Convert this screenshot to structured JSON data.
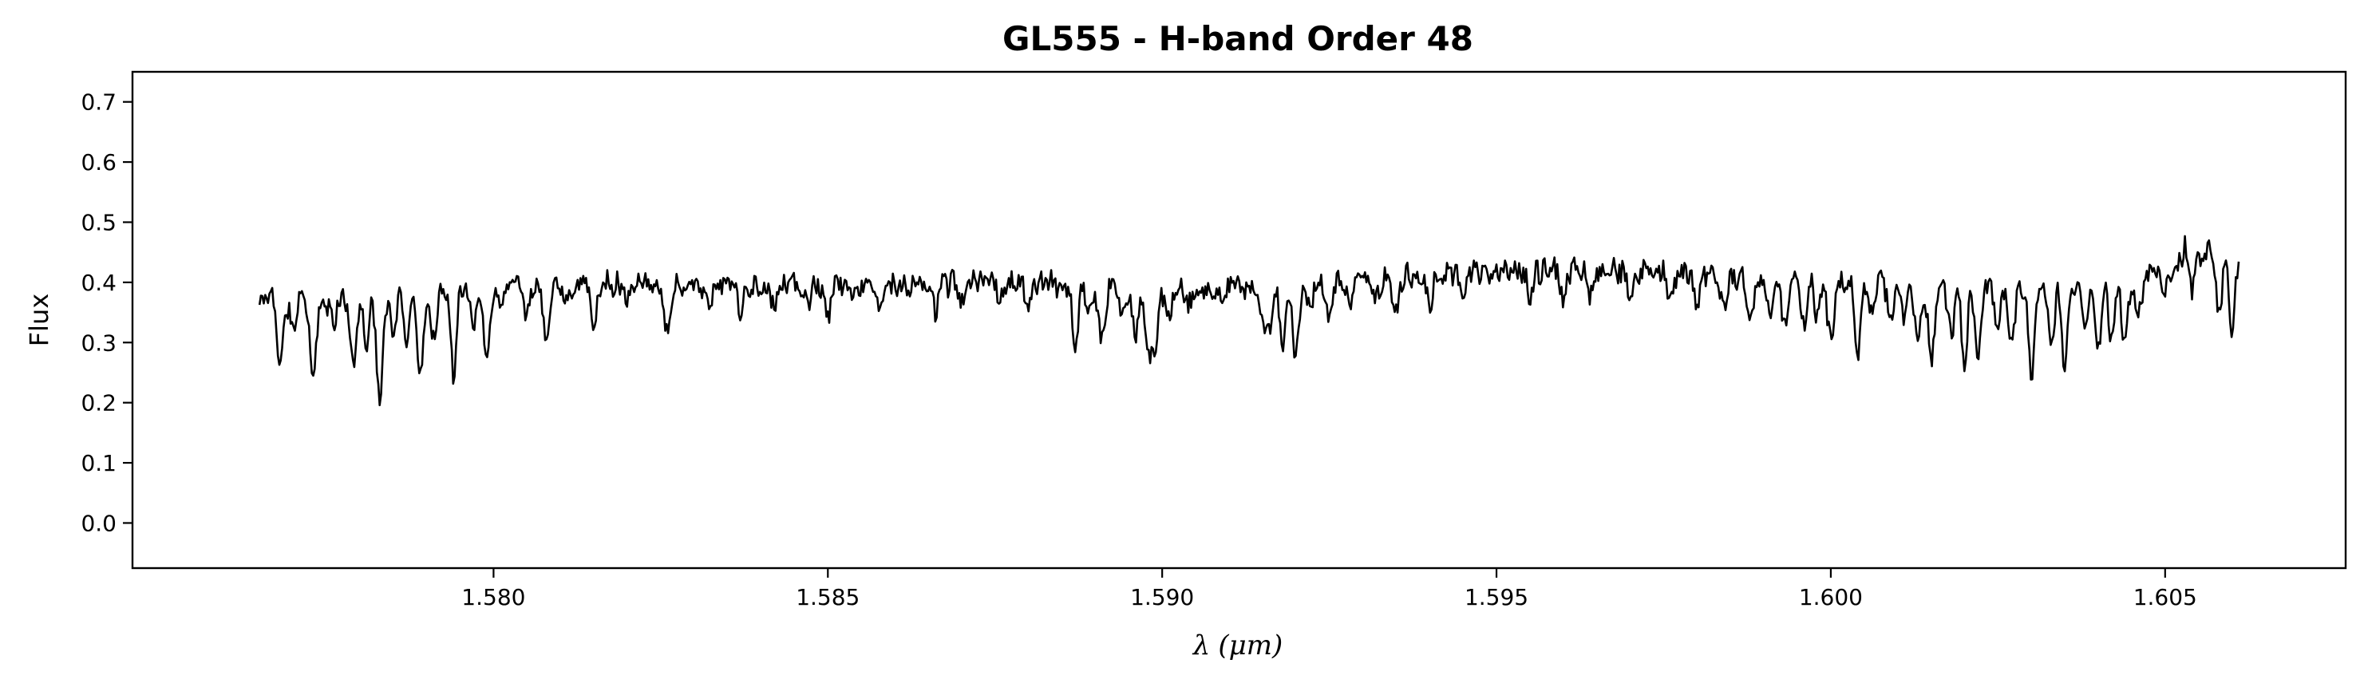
{
  "chart_data": {
    "type": "line",
    "title": "GL555 - H-band Order 48",
    "xlabel_symbol": "λ",
    "xlabel_unit": "(μm)",
    "ylabel": "Flux",
    "xlim": [
      1.5746,
      1.6077
    ],
    "ylim": [
      -0.075,
      0.75
    ],
    "xticks": [
      1.58,
      1.585,
      1.59,
      1.595,
      1.6,
      1.605
    ],
    "xtick_labels": [
      "1.580",
      "1.585",
      "1.590",
      "1.595",
      "1.600",
      "1.605"
    ],
    "yticks": [
      0.0,
      0.1,
      0.2,
      0.3,
      0.4,
      0.5,
      0.6,
      0.7
    ],
    "ytick_labels": [
      "0.0",
      "0.1",
      "0.2",
      "0.3",
      "0.4",
      "0.5",
      "0.6",
      "0.7"
    ],
    "grid": false,
    "legend": false,
    "line_color": "#000000",
    "series": [
      {
        "x_start": 1.5765,
        "x_end": 1.6061,
        "continuum": [
          [
            1.5765,
            0.38
          ],
          [
            1.5775,
            0.37
          ],
          [
            1.579,
            0.39
          ],
          [
            1.581,
            0.4
          ],
          [
            1.583,
            0.395
          ],
          [
            1.585,
            0.395
          ],
          [
            1.588,
            0.4
          ],
          [
            1.59,
            0.385
          ],
          [
            1.592,
            0.4
          ],
          [
            1.595,
            0.42
          ],
          [
            1.597,
            0.42
          ],
          [
            1.599,
            0.405
          ],
          [
            1.601,
            0.4
          ],
          [
            1.603,
            0.395
          ],
          [
            1.6045,
            0.405
          ],
          [
            1.6055,
            0.44
          ],
          [
            1.6061,
            0.45
          ]
        ],
        "absorption_lines": [
          [
            1.5768,
            0.26
          ],
          [
            1.577,
            0.32
          ],
          [
            1.5773,
            0.24
          ],
          [
            1.5776,
            0.33
          ],
          [
            1.5779,
            0.26
          ],
          [
            1.5781,
            0.3
          ],
          [
            1.5783,
            0.2
          ],
          [
            1.5785,
            0.31
          ],
          [
            1.5787,
            0.3
          ],
          [
            1.5789,
            0.23
          ],
          [
            1.5791,
            0.31
          ],
          [
            1.5794,
            0.25
          ],
          [
            1.5797,
            0.34
          ],
          [
            1.5799,
            0.26
          ],
          [
            1.5801,
            0.36
          ],
          [
            1.5805,
            0.35
          ],
          [
            1.5808,
            0.29
          ],
          [
            1.5811,
            0.36
          ],
          [
            1.5815,
            0.33
          ],
          [
            1.582,
            0.37
          ],
          [
            1.5826,
            0.31
          ],
          [
            1.5832,
            0.36
          ],
          [
            1.5837,
            0.35
          ],
          [
            1.5842,
            0.36
          ],
          [
            1.5847,
            0.36
          ],
          [
            1.585,
            0.35
          ],
          [
            1.5854,
            0.37
          ],
          [
            1.5858,
            0.36
          ],
          [
            1.5866,
            0.35
          ],
          [
            1.587,
            0.37
          ],
          [
            1.5876,
            0.37
          ],
          [
            1.588,
            0.36
          ],
          [
            1.5887,
            0.3
          ],
          [
            1.5889,
            0.36
          ],
          [
            1.5891,
            0.3
          ],
          [
            1.5894,
            0.34
          ],
          [
            1.5896,
            0.31
          ],
          [
            1.5898,
            0.28
          ],
          [
            1.5899,
            0.3
          ],
          [
            1.5901,
            0.34
          ],
          [
            1.5904,
            0.36
          ],
          [
            1.5909,
            0.37
          ],
          [
            1.5915,
            0.35
          ],
          [
            1.5916,
            0.32
          ],
          [
            1.5918,
            0.3
          ],
          [
            1.592,
            0.28
          ],
          [
            1.5922,
            0.36
          ],
          [
            1.5925,
            0.33
          ],
          [
            1.5928,
            0.36
          ],
          [
            1.5932,
            0.37
          ],
          [
            1.5935,
            0.35
          ],
          [
            1.594,
            0.37
          ],
          [
            1.5945,
            0.38
          ],
          [
            1.5955,
            0.38
          ],
          [
            1.596,
            0.37
          ],
          [
            1.5964,
            0.38
          ],
          [
            1.597,
            0.38
          ],
          [
            1.5976,
            0.37
          ],
          [
            1.598,
            0.37
          ],
          [
            1.5984,
            0.36
          ],
          [
            1.5988,
            0.34
          ],
          [
            1.5991,
            0.35
          ],
          [
            1.5993,
            0.33
          ],
          [
            1.5996,
            0.33
          ],
          [
            1.5998,
            0.35
          ],
          [
            1.6,
            0.3
          ],
          [
            1.6004,
            0.28
          ],
          [
            1.6006,
            0.34
          ],
          [
            1.6009,
            0.34
          ],
          [
            1.6011,
            0.34
          ],
          [
            1.6013,
            0.31
          ],
          [
            1.6015,
            0.27
          ],
          [
            1.6018,
            0.31
          ],
          [
            1.602,
            0.26
          ],
          [
            1.6022,
            0.28
          ],
          [
            1.6025,
            0.33
          ],
          [
            1.6027,
            0.29
          ],
          [
            1.603,
            0.24
          ],
          [
            1.6033,
            0.3
          ],
          [
            1.6035,
            0.27
          ],
          [
            1.6038,
            0.33
          ],
          [
            1.604,
            0.29
          ],
          [
            1.6042,
            0.3
          ],
          [
            1.6044,
            0.3
          ],
          [
            1.6046,
            0.35
          ],
          [
            1.605,
            0.38
          ],
          [
            1.6054,
            0.39
          ],
          [
            1.6058,
            0.34
          ],
          [
            1.606,
            0.31
          ]
        ],
        "emission_peaks": [
          [
            1.6057,
            0.47
          ],
          [
            1.6053,
            0.46
          ]
        ]
      }
    ]
  }
}
